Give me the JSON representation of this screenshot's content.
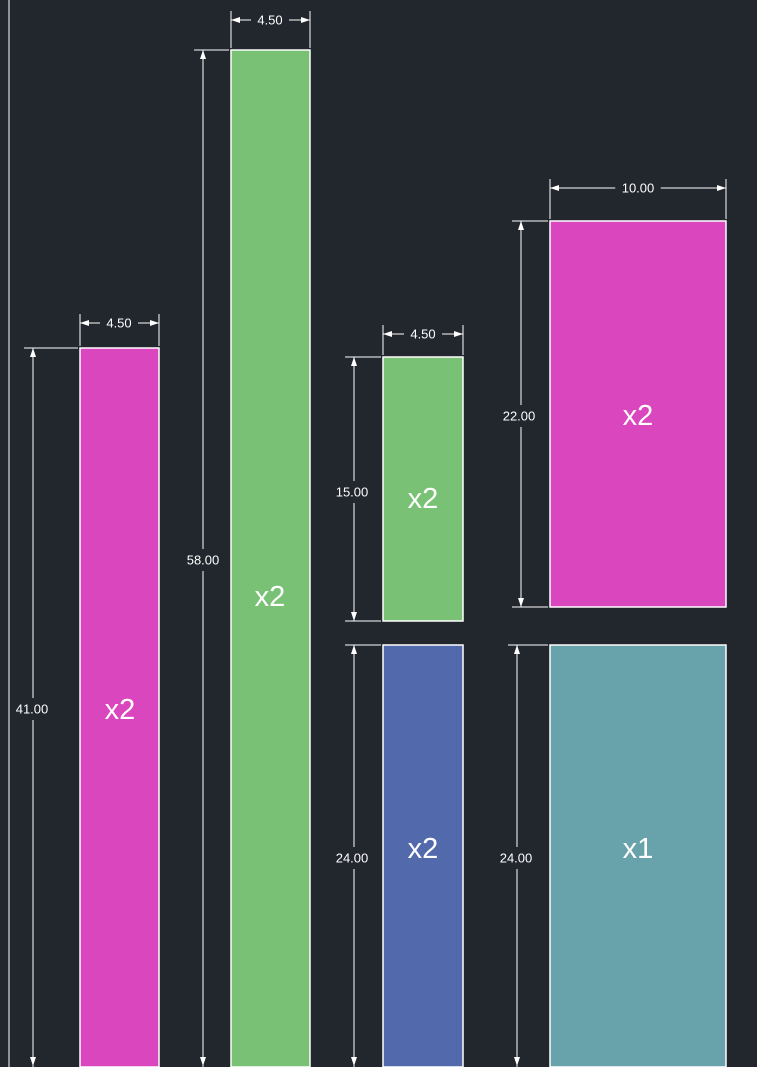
{
  "colors": {
    "background": "#22262d",
    "magenta": "#d946be",
    "green": "#79c175",
    "blue": "#526aab",
    "teal": "#68a3ab",
    "outline": "#ffffff"
  },
  "panels": [
    {
      "id": "panel-1",
      "color": "#d946be",
      "quantity": "x2",
      "width_label": "4.50",
      "height_label": "41.00"
    },
    {
      "id": "panel-2",
      "color": "#79c175",
      "quantity": "x2",
      "width_label": "4.50",
      "height_label": "58.00"
    },
    {
      "id": "panel-3",
      "color": "#79c175",
      "quantity": "x2",
      "width_label": "4.50",
      "height_label": "15.00"
    },
    {
      "id": "panel-4",
      "color": "#526aab",
      "quantity": "x2",
      "width_label": "",
      "height_label": "24.00"
    },
    {
      "id": "panel-5",
      "color": "#d946be",
      "quantity": "x2",
      "width_label": "10.00",
      "height_label": "22.00"
    },
    {
      "id": "panel-6",
      "color": "#68a3ab",
      "quantity": "x1",
      "width_label": "",
      "height_label": "24.00"
    }
  ]
}
